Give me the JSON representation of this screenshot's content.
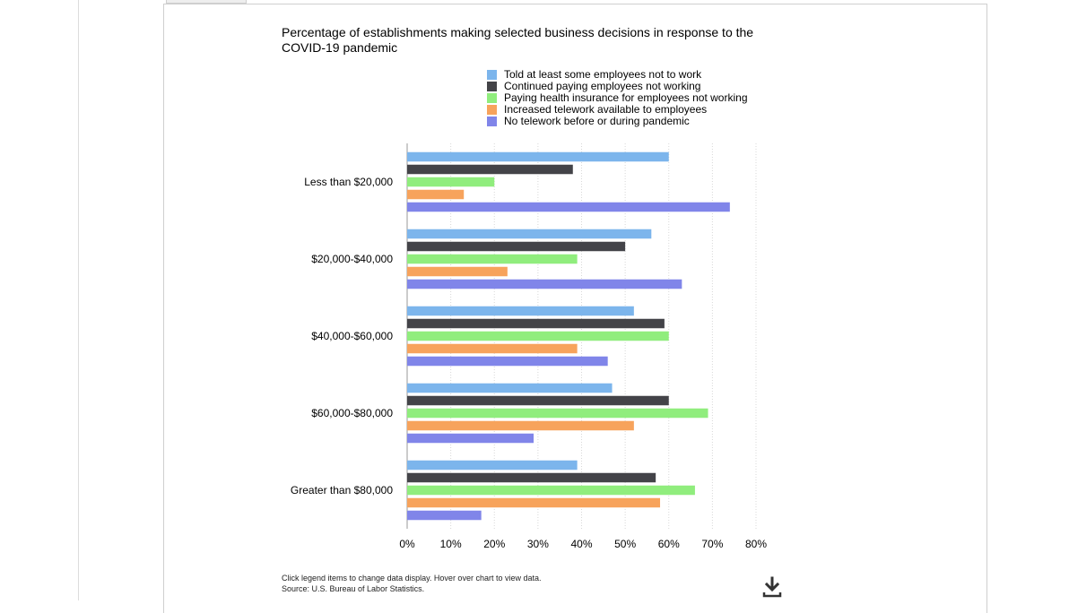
{
  "chart_data": {
    "type": "bar",
    "orientation": "horizontal",
    "title": "Percentage of establishments making selected business decisions in response to the COVID-19 pandemic",
    "categories": [
      "Less than $20,000",
      "$20,000-$40,000",
      "$40,000-$60,000",
      "$60,000-$80,000",
      "Greater than $80,000"
    ],
    "series": [
      {
        "name": "Told at least some employees not to work",
        "color": "#7cb5ec",
        "values": [
          60,
          56,
          52,
          47,
          39
        ]
      },
      {
        "name": "Continued paying employees not working",
        "color": "#434348",
        "values": [
          38,
          50,
          59,
          60,
          57
        ]
      },
      {
        "name": "Paying health insurance for employees not working",
        "color": "#90ed7d",
        "values": [
          20,
          39,
          60,
          69,
          66
        ]
      },
      {
        "name": "Increased telework available to employees",
        "color": "#f7a35c",
        "values": [
          13,
          23,
          39,
          52,
          58
        ]
      },
      {
        "name": "No telework before or during pandemic",
        "color": "#8085e9",
        "values": [
          74,
          63,
          46,
          29,
          17
        ]
      }
    ],
    "xlim": [
      0,
      80
    ],
    "ticks": [
      "0%",
      "10%",
      "20%",
      "30%",
      "40%",
      "50%",
      "60%",
      "70%",
      "80%"
    ],
    "grid": true,
    "legend_position": "top"
  },
  "footnote": {
    "line1": "Click legend items to change data display. Hover over chart to view data.",
    "line2": "Source: U.S. Bureau of Labor Statistics."
  },
  "icons": {
    "download": "download-icon"
  }
}
